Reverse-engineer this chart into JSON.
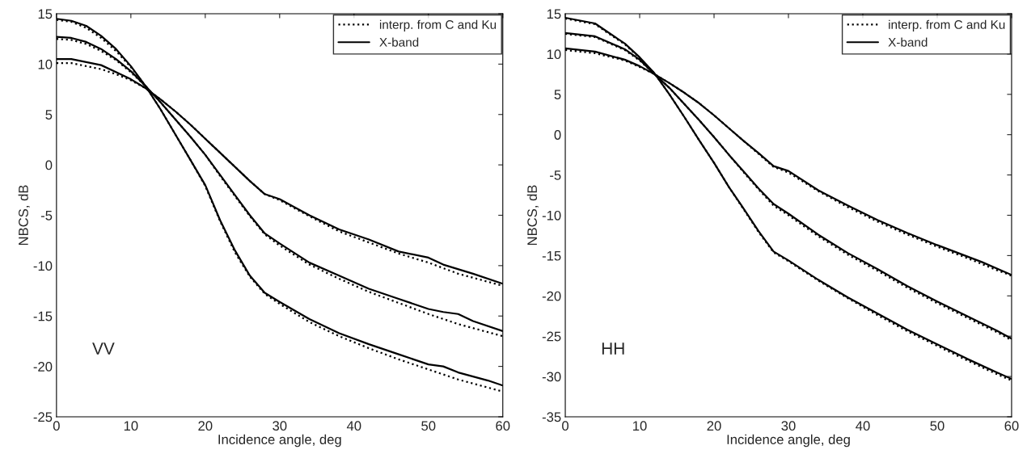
{
  "chart_data": [
    {
      "type": "line",
      "xlabel": "Incidence angle, deg",
      "ylabel": "NBCS, dB",
      "xlim": [
        0,
        60
      ],
      "ylim": [
        -25,
        15
      ],
      "xticks": [
        0,
        10,
        20,
        30,
        40,
        50,
        60
      ],
      "yticks": [
        -25,
        -20,
        -15,
        -10,
        -5,
        0,
        5,
        10,
        15
      ],
      "legend": "top right",
      "grid": false,
      "annotations": [
        "VV"
      ],
      "series": [
        {
          "name": "interp. from C and Ku",
          "color": "#000000",
          "line_style": "dotted",
          "x": [
            0,
            2,
            4,
            6,
            8,
            10,
            12,
            14,
            16,
            18,
            20,
            22,
            24,
            26,
            28,
            30,
            34,
            38,
            42,
            46,
            50,
            54,
            58,
            60
          ],
          "values": [
            14.4,
            14.2,
            13.6,
            12.6,
            11.3,
            9.7,
            7.8,
            5.5,
            3,
            0.5,
            -2.1,
            -5.6,
            -8.7,
            -11.1,
            -12.8,
            -13.8,
            -15.6,
            -17,
            -18.2,
            -19.3,
            -20.3,
            -21.3,
            -22.1,
            -22.5
          ]
        },
        {
          "name": "X-band",
          "color": "#000000",
          "line_style": "solid",
          "x": [
            0,
            2,
            4,
            6,
            8,
            10,
            12,
            14,
            16,
            18,
            20,
            22,
            24,
            26,
            28,
            30,
            34,
            38,
            42,
            46,
            50,
            52,
            54,
            58,
            60
          ],
          "values": [
            14.5,
            14.3,
            13.8,
            12.8,
            11.5,
            9.8,
            7.8,
            5.5,
            3,
            0.5,
            -2,
            -5.5,
            -8.5,
            -11,
            -12.7,
            -13.6,
            -15.3,
            -16.7,
            -17.8,
            -18.8,
            -19.8,
            -20,
            -20.6,
            -21.4,
            -21.9
          ]
        },
        {
          "color": "#000000",
          "line_style": "dotted",
          "x": [
            0,
            2,
            4,
            6,
            8,
            10,
            12,
            14,
            16,
            18,
            20,
            22,
            24,
            26,
            28,
            30,
            34,
            38,
            42,
            46,
            50,
            54,
            58,
            60
          ],
          "values": [
            12.5,
            12.4,
            12,
            11.3,
            10.4,
            9.2,
            7.8,
            6.2,
            4.5,
            2.8,
            1,
            -1.1,
            -3.1,
            -5.1,
            -6.9,
            -8,
            -9.9,
            -11.3,
            -12.6,
            -13.7,
            -14.8,
            -15.8,
            -16.6,
            -17
          ]
        },
        {
          "color": "#000000",
          "line_style": "solid",
          "x": [
            0,
            2,
            4,
            6,
            8,
            10,
            12,
            14,
            16,
            18,
            20,
            22,
            24,
            26,
            28,
            30,
            34,
            38,
            42,
            46,
            50,
            52,
            54,
            56,
            60
          ],
          "values": [
            12.7,
            12.6,
            12.2,
            11.5,
            10.5,
            9.3,
            7.8,
            6.2,
            4.5,
            2.8,
            1,
            -1,
            -3,
            -5,
            -6.8,
            -7.8,
            -9.7,
            -11,
            -12.3,
            -13.3,
            -14.3,
            -14.6,
            -14.8,
            -15.5,
            -16.5
          ]
        },
        {
          "color": "#000000",
          "line_style": "dotted",
          "x": [
            0,
            2,
            4,
            6,
            8,
            10,
            12,
            14,
            16,
            18,
            20,
            22,
            24,
            26,
            28,
            30,
            34,
            38,
            42,
            46,
            50,
            54,
            58,
            60
          ],
          "values": [
            10.1,
            10.1,
            9.8,
            9.5,
            9,
            8.4,
            7.6,
            6.5,
            5.3,
            4,
            2.6,
            1.2,
            -0.2,
            -1.6,
            -2.9,
            -3.5,
            -5.1,
            -6.6,
            -7.7,
            -8.8,
            -9.7,
            -10.8,
            -11.6,
            -12
          ]
        },
        {
          "color": "#000000",
          "line_style": "solid",
          "x": [
            0,
            2,
            4,
            6,
            8,
            10,
            12,
            14,
            16,
            18,
            20,
            22,
            24,
            26,
            28,
            30,
            34,
            38,
            42,
            46,
            50,
            52,
            56,
            60
          ],
          "values": [
            10.5,
            10.5,
            10.2,
            9.9,
            9.2,
            8.5,
            7.6,
            6.5,
            5.3,
            4,
            2.6,
            1.2,
            -0.2,
            -1.6,
            -2.9,
            -3.4,
            -5,
            -6.4,
            -7.4,
            -8.6,
            -9.2,
            -9.9,
            -10.8,
            -11.8
          ]
        }
      ]
    },
    {
      "type": "line",
      "xlabel": "Incidence angle, deg",
      "ylabel": "NBCS, dB",
      "xlim": [
        0,
        60
      ],
      "ylim": [
        -35,
        15
      ],
      "xticks": [
        0,
        10,
        20,
        30,
        40,
        50,
        60
      ],
      "yticks": [
        -35,
        -30,
        -25,
        -20,
        -15,
        -10,
        -5,
        0,
        5,
        10,
        15
      ],
      "legend": "top right",
      "grid": false,
      "annotations": [
        "HH"
      ],
      "series": [
        {
          "name": "interp. from C and Ku",
          "color": "#000000",
          "line_style": "dotted",
          "x": [
            0,
            4,
            8,
            10,
            12,
            14,
            16,
            18,
            20,
            22,
            24,
            26,
            28,
            30,
            34,
            38,
            42,
            46,
            50,
            54,
            58,
            60
          ],
          "values": [
            14.4,
            13.7,
            11.2,
            9.5,
            7.6,
            5,
            2.2,
            -0.7,
            -3.5,
            -6.5,
            -9.3,
            -12.1,
            -14.6,
            -15.7,
            -18.1,
            -20.3,
            -22.4,
            -24.4,
            -26.2,
            -28,
            -29.7,
            -30.5
          ]
        },
        {
          "name": "X-band",
          "color": "#000000",
          "line_style": "solid",
          "x": [
            0,
            4,
            8,
            10,
            12,
            14,
            16,
            18,
            20,
            22,
            24,
            26,
            28,
            30,
            34,
            38,
            42,
            46,
            50,
            54,
            58,
            60
          ],
          "values": [
            14.5,
            13.8,
            11.3,
            9.6,
            7.6,
            5,
            2.2,
            -0.7,
            -3.5,
            -6.5,
            -9.2,
            -12,
            -14.5,
            -15.6,
            -18,
            -20.2,
            -22.2,
            -24.2,
            -26,
            -27.8,
            -29.5,
            -30.3
          ]
        },
        {
          "color": "#000000",
          "line_style": "dotted",
          "x": [
            0,
            4,
            8,
            10,
            12,
            14,
            16,
            18,
            20,
            22,
            24,
            26,
            28,
            30,
            34,
            38,
            42,
            46,
            50,
            54,
            58,
            60
          ],
          "values": [
            12.5,
            12.1,
            10.5,
            9.2,
            7.5,
            5.8,
            3.8,
            1.8,
            -0.3,
            -2.5,
            -4.7,
            -6.8,
            -8.8,
            -10,
            -12.6,
            -14.9,
            -16.9,
            -19,
            -20.9,
            -22.7,
            -24.5,
            -25.5
          ]
        },
        {
          "color": "#000000",
          "line_style": "solid",
          "x": [
            0,
            4,
            8,
            10,
            12,
            14,
            16,
            18,
            20,
            22,
            24,
            26,
            28,
            30,
            34,
            38,
            42,
            46,
            50,
            54,
            58,
            60
          ],
          "values": [
            12.6,
            12.2,
            10.6,
            9.3,
            7.5,
            5.8,
            3.8,
            1.8,
            -0.3,
            -2.5,
            -4.6,
            -6.7,
            -8.6,
            -9.8,
            -12.4,
            -14.7,
            -16.7,
            -18.8,
            -20.7,
            -22.5,
            -24.3,
            -25.3
          ]
        },
        {
          "color": "#000000",
          "line_style": "dotted",
          "x": [
            0,
            4,
            8,
            10,
            12,
            14,
            16,
            18,
            20,
            22,
            24,
            26,
            28,
            30,
            34,
            38,
            42,
            46,
            50,
            54,
            58,
            60
          ],
          "values": [
            10.5,
            10.1,
            9.2,
            8.4,
            7.5,
            6.4,
            5.2,
            3.9,
            2.4,
            0.8,
            -0.8,
            -2.4,
            -4,
            -4.7,
            -7,
            -9,
            -10.8,
            -12.4,
            -13.9,
            -15.3,
            -16.8,
            -17.5
          ]
        },
        {
          "color": "#000000",
          "line_style": "solid",
          "x": [
            0,
            4,
            8,
            10,
            12,
            14,
            16,
            18,
            20,
            22,
            24,
            26,
            28,
            30,
            34,
            38,
            42,
            46,
            50,
            54,
            56,
            60
          ],
          "values": [
            10.7,
            10.3,
            9.3,
            8.5,
            7.5,
            6.4,
            5.2,
            3.9,
            2.4,
            0.8,
            -0.8,
            -2.3,
            -3.9,
            -4.5,
            -6.9,
            -8.8,
            -10.6,
            -12.2,
            -13.7,
            -15.1,
            -15.8,
            -17.4
          ]
        }
      ]
    }
  ]
}
